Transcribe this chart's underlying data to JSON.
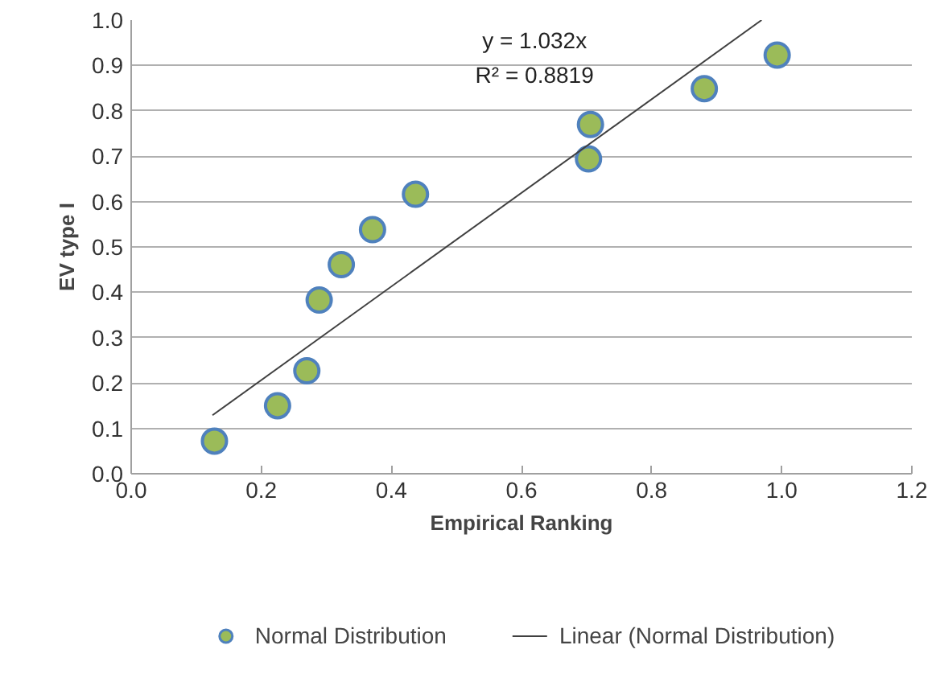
{
  "chart_data": {
    "type": "scatter",
    "xlabel": "Empirical Ranking",
    "ylabel": "EV type I",
    "xlim": [
      0,
      1.2
    ],
    "ylim": [
      0,
      1.0
    ],
    "xticks": [
      {
        "value": 0,
        "label": "0.0"
      },
      {
        "value": 0.2,
        "label": "0.2"
      },
      {
        "value": 0.4,
        "label": "0.4"
      },
      {
        "value": 0.6,
        "label": "0.6"
      },
      {
        "value": 0.8,
        "label": "0.8"
      },
      {
        "value": 1.0,
        "label": "1.0"
      },
      {
        "value": 1.2,
        "label": "1.2"
      }
    ],
    "yticks": [
      {
        "value": 0,
        "label": "0.0"
      },
      {
        "value": 0.1,
        "label": "0.1"
      },
      {
        "value": 0.2,
        "label": "0.2"
      },
      {
        "value": 0.3,
        "label": "0.3"
      },
      {
        "value": 0.4,
        "label": "0.4"
      },
      {
        "value": 0.5,
        "label": "0.5"
      },
      {
        "value": 0.6,
        "label": "0.6"
      },
      {
        "value": 0.7,
        "label": "0.7"
      },
      {
        "value": 0.8,
        "label": "0.8"
      },
      {
        "value": 0.9,
        "label": "0.9"
      },
      {
        "value": 1.0,
        "label": "1.0"
      }
    ],
    "grid": "y",
    "legend": "bottom",
    "annotations": [
      "y = 1.032x",
      "R² = 0.8819"
    ],
    "series": [
      {
        "name": "Normal Distribution",
        "type": "scatter",
        "marker": "circle",
        "color": "#9bbb59",
        "x": [
          0.128,
          0.225,
          0.27,
          0.289,
          0.323,
          0.371,
          0.437,
          0.706,
          0.703,
          0.881,
          0.993
        ],
        "values": [
          0.072,
          0.15,
          0.227,
          0.383,
          0.461,
          0.538,
          0.616,
          0.77,
          0.694,
          0.849,
          0.923
        ]
      },
      {
        "name": "Linear (Normal Distribution)",
        "type": "line",
        "color": "#404040",
        "x": [
          0.125,
          0.969
        ],
        "values": [
          0.129,
          1.0
        ]
      }
    ]
  }
}
